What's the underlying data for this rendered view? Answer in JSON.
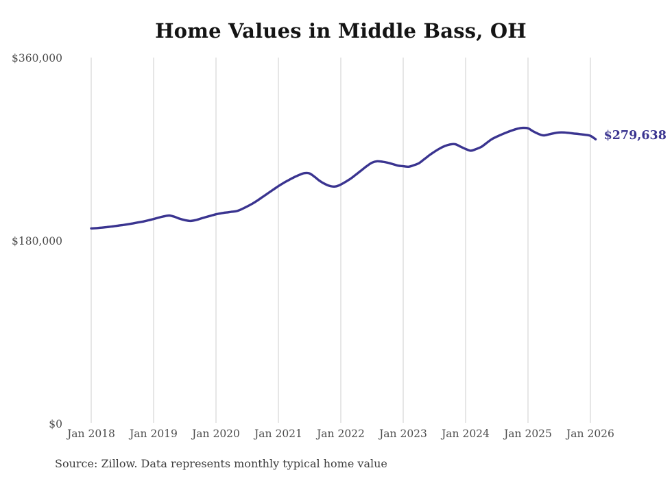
{
  "chart_data": {
    "type": "line",
    "title": "Home Values in Middle Bass, OH",
    "source_note": "Source: Zillow. Data represents monthly typical home value",
    "end_label": "$279,638",
    "latest_value": 279638,
    "series_name": "Monthly typical home value",
    "line_color": "#3a3490",
    "grid_color": "#cccccc",
    "axis_label_color": "#4d4d4d",
    "ylim": [
      0,
      360000
    ],
    "grid": "vertical-only",
    "legend": "none",
    "y_ticks": [
      {
        "value": 0,
        "label": "$0"
      },
      {
        "value": 180000,
        "label": "$180,000"
      },
      {
        "value": 360000,
        "label": "$360,000"
      }
    ],
    "x_ticks": [
      {
        "label": "Jan 2018",
        "month": "2018-01"
      },
      {
        "label": "Jan 2019",
        "month": "2019-01"
      },
      {
        "label": "Jan 2020",
        "month": "2020-01"
      },
      {
        "label": "Jan 2021",
        "month": "2021-01"
      },
      {
        "label": "Jan 2022",
        "month": "2022-01"
      },
      {
        "label": "Jan 2023",
        "month": "2023-01"
      },
      {
        "label": "Jan 2024",
        "month": "2024-01"
      },
      {
        "label": "Jan 2025",
        "month": "2025-01"
      },
      {
        "label": "Jan 2026",
        "month": "2026-01"
      }
    ],
    "points": [
      [
        "2018-01",
        191900
      ],
      [
        "2018-02",
        192200
      ],
      [
        "2018-03",
        192700
      ],
      [
        "2018-04",
        193200
      ],
      [
        "2018-05",
        193800
      ],
      [
        "2018-06",
        194500
      ],
      [
        "2018-07",
        195200
      ],
      [
        "2018-08",
        196000
      ],
      [
        "2018-09",
        196800
      ],
      [
        "2018-10",
        197800
      ],
      [
        "2018-11",
        198700
      ],
      [
        "2018-12",
        199900
      ],
      [
        "2019-01",
        201200
      ],
      [
        "2019-02",
        202600
      ],
      [
        "2019-03",
        203800
      ],
      [
        "2019-04",
        204600
      ],
      [
        "2019-05",
        203400
      ],
      [
        "2019-06",
        201500
      ],
      [
        "2019-07",
        200100
      ],
      [
        "2019-08",
        199300
      ],
      [
        "2019-09",
        200000
      ],
      [
        "2019-10",
        201500
      ],
      [
        "2019-11",
        203000
      ],
      [
        "2019-12",
        204400
      ],
      [
        "2020-01",
        205800
      ],
      [
        "2020-02",
        206800
      ],
      [
        "2020-03",
        207600
      ],
      [
        "2020-04",
        208300
      ],
      [
        "2020-05",
        209000
      ],
      [
        "2020-06",
        211000
      ],
      [
        "2020-07",
        213500
      ],
      [
        "2020-08",
        216300
      ],
      [
        "2020-09",
        219500
      ],
      [
        "2020-10",
        223000
      ],
      [
        "2020-11",
        226500
      ],
      [
        "2020-12",
        230000
      ],
      [
        "2021-01",
        233500
      ],
      [
        "2021-02",
        236700
      ],
      [
        "2021-03",
        239500
      ],
      [
        "2021-04",
        242200
      ],
      [
        "2021-05",
        244500
      ],
      [
        "2021-06",
        246300
      ],
      [
        "2021-07",
        246000
      ],
      [
        "2021-08",
        242500
      ],
      [
        "2021-09",
        238500
      ],
      [
        "2021-10",
        235500
      ],
      [
        "2021-11",
        233500
      ],
      [
        "2021-12",
        233200
      ],
      [
        "2022-01",
        235100
      ],
      [
        "2022-02",
        238000
      ],
      [
        "2022-03",
        241300
      ],
      [
        "2022-04",
        245200
      ],
      [
        "2022-05",
        249200
      ],
      [
        "2022-06",
        253200
      ],
      [
        "2022-07",
        256600
      ],
      [
        "2022-08",
        258000
      ],
      [
        "2022-09",
        257500
      ],
      [
        "2022-10",
        256600
      ],
      [
        "2022-11",
        255200
      ],
      [
        "2022-12",
        253700
      ],
      [
        "2023-01",
        253100
      ],
      [
        "2023-02",
        252600
      ],
      [
        "2023-03",
        254000
      ],
      [
        "2023-04",
        256000
      ],
      [
        "2023-05",
        259800
      ],
      [
        "2023-06",
        263800
      ],
      [
        "2023-07",
        267300
      ],
      [
        "2023-08",
        270500
      ],
      [
        "2023-09",
        273000
      ],
      [
        "2023-10",
        274500
      ],
      [
        "2023-11",
        274800
      ],
      [
        "2023-12",
        272400
      ],
      [
        "2024-01",
        270100
      ],
      [
        "2024-02",
        268400
      ],
      [
        "2024-03",
        269900
      ],
      [
        "2024-04",
        272100
      ],
      [
        "2024-05",
        275800
      ],
      [
        "2024-06",
        279600
      ],
      [
        "2024-07",
        282200
      ],
      [
        "2024-08",
        284500
      ],
      [
        "2024-09",
        286600
      ],
      [
        "2024-10",
        288500
      ],
      [
        "2024-11",
        290000
      ],
      [
        "2024-12",
        290800
      ],
      [
        "2025-01",
        290400
      ],
      [
        "2025-02",
        287400
      ],
      [
        "2025-03",
        284900
      ],
      [
        "2025-04",
        283400
      ],
      [
        "2025-05",
        284400
      ],
      [
        "2025-06",
        285600
      ],
      [
        "2025-07",
        286300
      ],
      [
        "2025-08",
        286300
      ],
      [
        "2025-09",
        285800
      ],
      [
        "2025-10",
        285200
      ],
      [
        "2025-11",
        284600
      ],
      [
        "2025-12",
        284000
      ],
      [
        "2026-01",
        283000
      ],
      [
        "2026-02",
        279638
      ]
    ]
  }
}
